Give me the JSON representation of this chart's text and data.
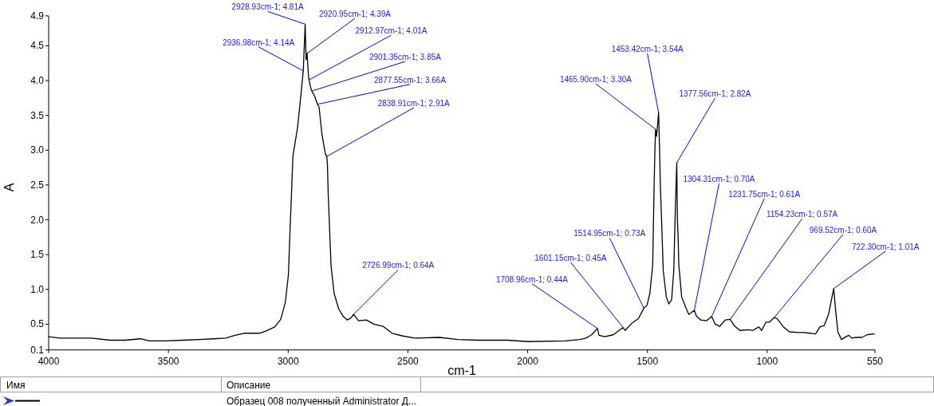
{
  "chart_data": {
    "type": "line",
    "xlabel": "cm-1",
    "ylabel": "A",
    "xlim": [
      4000,
      550
    ],
    "xticks": [
      4000,
      3500,
      3000,
      2500,
      2000,
      1500,
      1000,
      550
    ],
    "ylim": [
      0.13,
      4.93
    ],
    "yticks": [
      {
        "value": 0.13,
        "label": "0.1"
      },
      0.5,
      {
        "value": 1,
        "label": "1.0"
      },
      1.5,
      {
        "value": 2,
        "label": "2.0"
      },
      2.5,
      {
        "value": 3,
        "label": "3.0"
      },
      3.5,
      {
        "value": 4,
        "label": "4.0"
      },
      4.5,
      {
        "value": 4.93,
        "label": "4.9"
      }
    ],
    "x": [
      4000,
      3955,
      3821,
      3744,
      3680,
      3617,
      3579,
      3515,
      3439,
      3311,
      3260,
      3222,
      3183,
      3120,
      3094,
      3056,
      3031,
      3012,
      2999,
      2992,
      2986,
      2980,
      2961,
      2948,
      2936.98,
      2928.93,
      2925,
      2920.95,
      2916,
      2912.97,
      2906,
      2901.35,
      2890,
      2877.55,
      2871,
      2859,
      2845,
      2838.91,
      2836,
      2833,
      2827,
      2821,
      2808,
      2789,
      2770,
      2753,
      2738,
      2726.99,
      2706,
      2674,
      2642,
      2604,
      2566,
      2521,
      2470,
      2368,
      2292,
      2205,
      2084,
      1999,
      1842,
      1781,
      1757,
      1732,
      1708.96,
      1702,
      1678,
      1641,
      1611,
      1601.15,
      1593,
      1563,
      1538,
      1514.95,
      1502,
      1490,
      1478,
      1472,
      1468,
      1465.9,
      1462,
      1458,
      1453.42,
      1450,
      1446,
      1440,
      1434,
      1421,
      1411,
      1399,
      1390,
      1384,
      1377.56,
      1375,
      1372,
      1369,
      1357,
      1339,
      1327,
      1304.31,
      1296,
      1277,
      1253,
      1231.75,
      1217,
      1198,
      1175,
      1154.23,
      1138,
      1114,
      1078,
      1060,
      1035,
      1023,
      1005,
      990,
      969.52,
      956,
      932,
      907,
      871,
      847,
      822,
      798,
      780,
      762,
      744,
      722.3,
      714,
      705,
      690,
      671,
      659,
      647,
      629,
      605,
      581,
      553
    ],
    "series": [
      {
        "color": "#000000",
        "values": [
          0.32,
          0.3,
          0.3,
          0.27,
          0.27,
          0.29,
          0.26,
          0.26,
          0.27,
          0.29,
          0.3,
          0.34,
          0.37,
          0.37,
          0.4,
          0.46,
          0.57,
          0.81,
          1.21,
          1.86,
          2.39,
          2.92,
          3.32,
          3.75,
          4.14,
          4.81,
          4.3,
          4.39,
          4.1,
          4.01,
          3.9,
          3.85,
          3.78,
          3.66,
          3.62,
          3.23,
          2.95,
          2.91,
          2.79,
          2.39,
          1.86,
          1.34,
          0.94,
          0.72,
          0.61,
          0.56,
          0.59,
          0.64,
          0.55,
          0.56,
          0.5,
          0.47,
          0.37,
          0.33,
          0.3,
          0.31,
          0.28,
          0.27,
          0.27,
          0.25,
          0.26,
          0.28,
          0.3,
          0.35,
          0.44,
          0.34,
          0.32,
          0.35,
          0.43,
          0.45,
          0.41,
          0.52,
          0.58,
          0.73,
          0.77,
          0.94,
          1.35,
          2.52,
          3.1,
          3.3,
          3.2,
          3.35,
          3.54,
          3.1,
          2.49,
          1.9,
          1.27,
          0.89,
          0.79,
          0.85,
          1.27,
          2.1,
          2.82,
          2.0,
          1.77,
          1.35,
          0.89,
          0.73,
          0.64,
          0.7,
          0.62,
          0.56,
          0.55,
          0.61,
          0.5,
          0.47,
          0.56,
          0.57,
          0.48,
          0.41,
          0.42,
          0.41,
          0.46,
          0.41,
          0.53,
          0.53,
          0.6,
          0.57,
          0.46,
          0.39,
          0.38,
          0.38,
          0.37,
          0.36,
          0.46,
          0.48,
          0.64,
          1.01,
          0.69,
          0.39,
          0.28,
          0.32,
          0.34,
          0.3,
          0.31,
          0.31,
          0.35,
          0.36
        ]
      }
    ],
    "annotations": [
      {
        "text": "2936.98cm-1; 4.14A",
        "x": 2936.98,
        "y": 4.14
      },
      {
        "text": "2928.93cm-1; 4.81A",
        "x": 2928.93,
        "y": 4.81
      },
      {
        "text": "2920.95cm-1; 4.39A",
        "x": 2920.95,
        "y": 4.39
      },
      {
        "text": "2912.97cm-1; 4.01A",
        "x": 2912.97,
        "y": 4.01
      },
      {
        "text": "2901.35cm-1; 3.85A",
        "x": 2901.35,
        "y": 3.85
      },
      {
        "text": "2877.55cm-1; 3.66A",
        "x": 2877.55,
        "y": 3.66
      },
      {
        "text": "2838.91cm-1; 2.91A",
        "x": 2838.91,
        "y": 2.91
      },
      {
        "text": "2726.99cm-1; 0.64A",
        "x": 2726.99,
        "y": 0.64
      },
      {
        "text": "1708.96cm-1; 0.44A",
        "x": 1708.96,
        "y": 0.44
      },
      {
        "text": "1601.15cm-1; 0.45A",
        "x": 1601.15,
        "y": 0.45
      },
      {
        "text": "1514.95cm-1; 0.73A",
        "x": 1514.95,
        "y": 0.73
      },
      {
        "text": "1465.90cm-1; 3.30A",
        "x": 1465.9,
        "y": 3.3
      },
      {
        "text": "1453.42cm-1; 3.54A",
        "x": 1453.42,
        "y": 3.54
      },
      {
        "text": "1377.56cm-1; 2.82A",
        "x": 1377.56,
        "y": 2.82
      },
      {
        "text": "1304.31cm-1; 0.70A",
        "x": 1304.31,
        "y": 0.7
      },
      {
        "text": "1231.75cm-1; 0.61A",
        "x": 1231.75,
        "y": 0.61
      },
      {
        "text": "1154.23cm-1; 0.57A",
        "x": 1154.23,
        "y": 0.57
      },
      {
        "text": "969.52cm-1; 0.60A",
        "x": 969.52,
        "y": 0.6
      },
      {
        "text": "722.30cm-1; 1.01A",
        "x": 722.3,
        "y": 1.01
      },
      "Имя",
      "Описание",
      "Образец 008 полученный Administrator Д..."
    ]
  }
}
